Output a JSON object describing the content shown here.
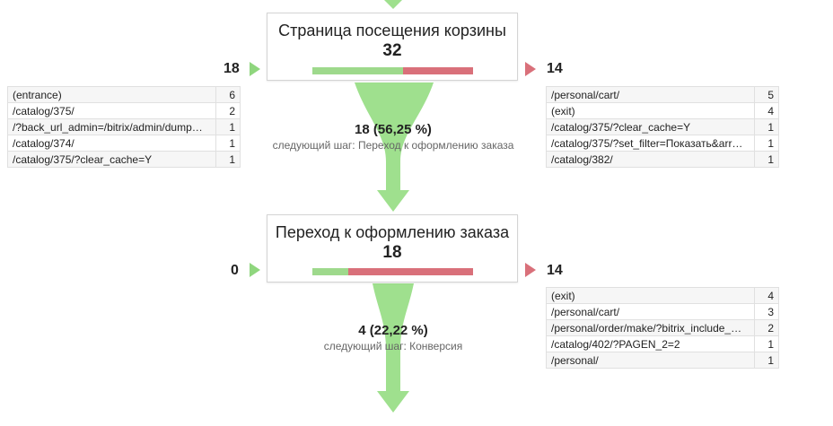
{
  "colors": {
    "funnel_green": "#9fe08e",
    "bar_green": "#9ed98c",
    "bar_red": "#d9707a",
    "arrow_in": "#8fd67e",
    "arrow_out": "#d9707a"
  },
  "steps": [
    {
      "title": "Страница посещения корзины",
      "count": "32",
      "bar_in_fraction": 0.5625,
      "in_count": "18",
      "out_count": "14",
      "entrances": [
        {
          "page": "(entrance)",
          "value": "6"
        },
        {
          "page": "/catalog/375/",
          "value": "2"
        },
        {
          "page": "/?back_url_admin=/bitrix/admin/dump…",
          "value": "1"
        },
        {
          "page": "/catalog/374/",
          "value": "1"
        },
        {
          "page": "/catalog/375/?clear_cache=Y",
          "value": "1"
        }
      ],
      "exits": [
        {
          "page": "/personal/cart/",
          "value": "5"
        },
        {
          "page": "(exit)",
          "value": "4"
        },
        {
          "page": "/catalog/375/?clear_cache=Y",
          "value": "1"
        },
        {
          "page": "/catalog/375/?set_filter=Показать&arr…",
          "value": "1"
        },
        {
          "page": "/catalog/382/",
          "value": "1"
        }
      ],
      "pass_text": "18 (56,25 %)",
      "next_text": "следующий шаг: Переход к оформлению заказа"
    },
    {
      "title": "Переход к оформлению заказа",
      "count": "18",
      "bar_in_fraction": 0.2222,
      "in_count": "0",
      "out_count": "14",
      "entrances": [],
      "exits": [
        {
          "page": "(exit)",
          "value": "4"
        },
        {
          "page": "/personal/cart/",
          "value": "3"
        },
        {
          "page": "/personal/order/make/?bitrix_include_…",
          "value": "2"
        },
        {
          "page": "/catalog/402/?PAGEN_2=2",
          "value": "1"
        },
        {
          "page": "/personal/",
          "value": "1"
        }
      ],
      "pass_text": "4 (22,22 %)",
      "next_text": "следующий шаг: Конверсия"
    }
  ]
}
